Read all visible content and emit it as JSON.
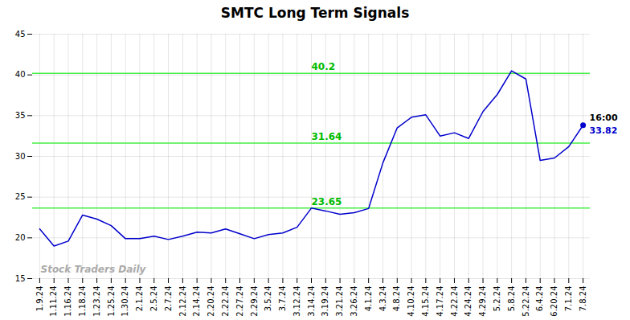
{
  "chart_data": {
    "type": "line",
    "title": "SMTC Long Term Signals",
    "categories": [
      "1.9.24",
      "1.11.24",
      "1.16.24",
      "1.18.24",
      "1.23.24",
      "1.25.24",
      "1.30.24",
      "2.1.24",
      "2.5.24",
      "2.7.24",
      "2.12.24",
      "2.14.24",
      "2.20.24",
      "2.22.24",
      "2.27.24",
      "2.29.24",
      "3.5.24",
      "3.7.24",
      "3.12.24",
      "3.14.24",
      "3.19.24",
      "3.21.24",
      "3.26.24",
      "4.1.24",
      "4.3.24",
      "4.8.24",
      "4.10.24",
      "4.15.24",
      "4.17.24",
      "4.22.24",
      "4.24.24",
      "4.29.24",
      "5.2.24",
      "5.8.24",
      "5.22.24",
      "6.4.24",
      "6.20.24",
      "7.1.24",
      "7.8.24"
    ],
    "values": [
      21.1,
      19.0,
      19.6,
      22.8,
      22.3,
      21.5,
      19.9,
      19.9,
      20.2,
      19.8,
      20.2,
      20.7,
      20.6,
      21.1,
      20.5,
      19.9,
      20.4,
      20.6,
      21.3,
      23.65,
      23.3,
      22.9,
      23.1,
      23.6,
      29.2,
      33.5,
      34.8,
      35.1,
      32.5,
      32.9,
      32.2,
      35.5,
      37.6,
      40.5,
      39.5,
      29.5,
      29.8,
      31.2,
      33.82
    ],
    "color": "#0000cc",
    "marker": "circle",
    "hlines": {
      "values": [
        40.2,
        31.64,
        23.65
      ],
      "color": "#44ee44",
      "label_color": "#00bb00"
    },
    "annotations": [
      {
        "text": "16:00",
        "color": "black"
      },
      {
        "text": "33.82",
        "color": "#0000cc"
      }
    ],
    "watermark": "Stock Traders Daily",
    "ylim": [
      15,
      45
    ],
    "yticks": [
      15,
      20,
      25,
      30,
      35,
      40,
      45
    ],
    "grid": true
  }
}
